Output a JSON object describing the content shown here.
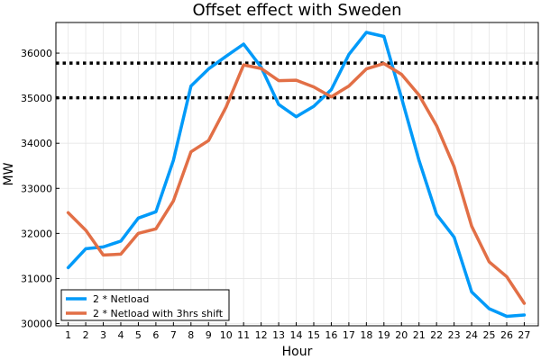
{
  "chart_data": {
    "type": "line",
    "title": "Offset effect with Sweden",
    "xlabel": "Hour",
    "ylabel": "MW",
    "xlim": [
      0.3,
      27.8
    ],
    "ylim": [
      29950,
      36680
    ],
    "x_ticks": [
      1,
      2,
      3,
      4,
      5,
      6,
      7,
      8,
      9,
      10,
      11,
      12,
      13,
      14,
      15,
      16,
      17,
      18,
      19,
      20,
      21,
      22,
      23,
      24,
      25,
      26,
      27
    ],
    "y_ticks": [
      30000,
      31000,
      32000,
      33000,
      34000,
      35000,
      36000
    ],
    "grid": true,
    "legend_position": "bottom-left",
    "x": [
      1,
      2,
      3,
      4,
      5,
      6,
      7,
      8,
      9,
      10,
      11,
      12,
      13,
      14,
      15,
      16,
      17,
      18,
      19,
      20,
      21,
      22,
      23,
      24,
      25,
      26,
      27
    ],
    "series": [
      {
        "name": "2 * Netload",
        "color": "#009af9",
        "values": [
          31240,
          31660,
          31700,
          31830,
          32340,
          32480,
          33620,
          35270,
          35650,
          35930,
          36200,
          35690,
          34860,
          34590,
          34820,
          35190,
          35970,
          36460,
          36370,
          35010,
          33620,
          32420,
          31920,
          30700,
          30330,
          30160,
          30190
        ]
      },
      {
        "name": "2 * Netload with 3hrs shift",
        "color": "#e26f46",
        "values": [
          32460,
          32070,
          31520,
          31540,
          32000,
          32100,
          32720,
          33810,
          34060,
          34800,
          35740,
          35660,
          35390,
          35400,
          35250,
          35030,
          35270,
          35650,
          35770,
          35530,
          35070,
          34390,
          33480,
          32160,
          31370,
          31040,
          30450
        ]
      }
    ],
    "reference_lines": [
      35780,
      35010
    ]
  }
}
